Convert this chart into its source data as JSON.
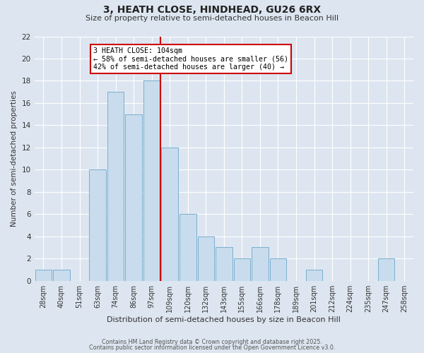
{
  "title_line1": "3, HEATH CLOSE, HINDHEAD, GU26 6RX",
  "title_line2": "Size of property relative to semi-detached houses in Beacon Hill",
  "xlabel": "Distribution of semi-detached houses by size in Beacon Hill",
  "ylabel": "Number of semi-detached properties",
  "bar_labels": [
    "28sqm",
    "40sqm",
    "51sqm",
    "63sqm",
    "74sqm",
    "86sqm",
    "97sqm",
    "109sqm",
    "120sqm",
    "132sqm",
    "143sqm",
    "155sqm",
    "166sqm",
    "178sqm",
    "189sqm",
    "201sqm",
    "212sqm",
    "224sqm",
    "235sqm",
    "247sqm",
    "258sqm"
  ],
  "bar_values": [
    1,
    1,
    0,
    10,
    17,
    15,
    18,
    12,
    6,
    4,
    3,
    2,
    3,
    2,
    0,
    1,
    0,
    0,
    0,
    2,
    0
  ],
  "bar_color": "#c8dced",
  "bar_edge_color": "#7aaed0",
  "vline_color": "#cc0000",
  "annotation_title": "3 HEATH CLOSE: 104sqm",
  "annotation_line1": "← 58% of semi-detached houses are smaller (56)",
  "annotation_line2": "42% of semi-detached houses are larger (40) →",
  "annotation_box_color": "#ffffff",
  "annotation_box_edge": "#cc0000",
  "ylim": [
    0,
    22
  ],
  "yticks": [
    0,
    2,
    4,
    6,
    8,
    10,
    12,
    14,
    16,
    18,
    20,
    22
  ],
  "background_color": "#dde6f0",
  "grid_color": "#ffffff",
  "footer_line1": "Contains HM Land Registry data © Crown copyright and database right 2025.",
  "footer_line2": "Contains public sector information licensed under the Open Government Licence v3.0."
}
